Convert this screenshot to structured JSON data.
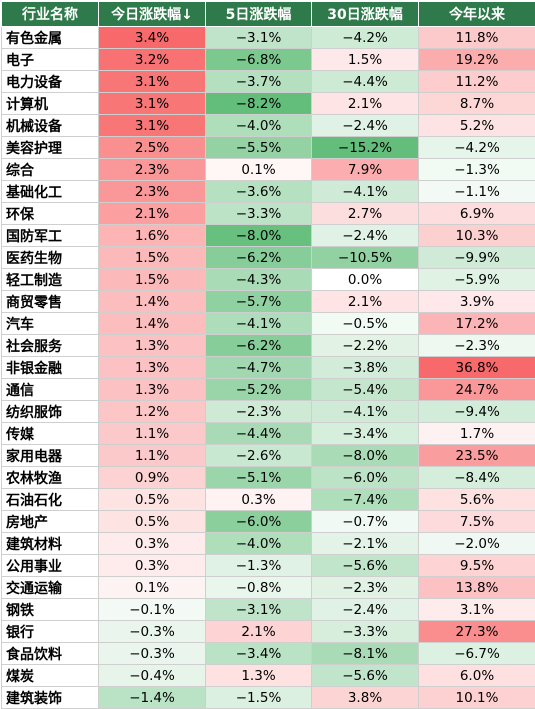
{
  "chart_data": {
    "type": "table",
    "columns": [
      "行业名称",
      "今日涨跌幅↓",
      "5日涨跌幅",
      "30日涨跌幅",
      "今年以来"
    ],
    "rows": [
      {
        "name": "有色金属",
        "values": [
          "3.4%",
          "−3.1%",
          "−4.2%",
          "11.8%"
        ]
      },
      {
        "name": "电子",
        "values": [
          "3.2%",
          "−6.8%",
          "1.5%",
          "19.2%"
        ]
      },
      {
        "name": "电力设备",
        "values": [
          "3.1%",
          "−3.7%",
          "−4.4%",
          "11.2%"
        ]
      },
      {
        "name": "计算机",
        "values": [
          "3.1%",
          "−8.2%",
          "2.1%",
          "8.7%"
        ]
      },
      {
        "name": "机械设备",
        "values": [
          "3.1%",
          "−4.0%",
          "−2.4%",
          "5.2%"
        ]
      },
      {
        "name": "美容护理",
        "values": [
          "2.5%",
          "−5.5%",
          "−15.2%",
          "−4.2%"
        ]
      },
      {
        "name": "综合",
        "values": [
          "2.3%",
          "0.1%",
          "7.9%",
          "−1.3%"
        ]
      },
      {
        "name": "基础化工",
        "values": [
          "2.3%",
          "−3.6%",
          "−4.1%",
          "−1.1%"
        ]
      },
      {
        "name": "环保",
        "values": [
          "2.1%",
          "−3.3%",
          "2.7%",
          "6.9%"
        ]
      },
      {
        "name": "国防军工",
        "values": [
          "1.6%",
          "−8.0%",
          "−2.4%",
          "10.3%"
        ]
      },
      {
        "name": "医药生物",
        "values": [
          "1.5%",
          "−6.2%",
          "−10.5%",
          "−9.9%"
        ]
      },
      {
        "name": "轻工制造",
        "values": [
          "1.5%",
          "−4.3%",
          "0.0%",
          "−5.9%"
        ]
      },
      {
        "name": "商贸零售",
        "values": [
          "1.4%",
          "−5.7%",
          "2.1%",
          "3.9%"
        ]
      },
      {
        "name": "汽车",
        "values": [
          "1.4%",
          "−4.1%",
          "−0.5%",
          "17.2%"
        ]
      },
      {
        "name": "社会服务",
        "values": [
          "1.3%",
          "−6.2%",
          "−2.2%",
          "−2.3%"
        ]
      },
      {
        "name": "非银金融",
        "values": [
          "1.3%",
          "−4.7%",
          "−3.8%",
          "36.8%"
        ]
      },
      {
        "name": "通信",
        "values": [
          "1.3%",
          "−5.2%",
          "−5.4%",
          "24.7%"
        ]
      },
      {
        "name": "纺织服饰",
        "values": [
          "1.2%",
          "−2.3%",
          "−4.1%",
          "−9.4%"
        ]
      },
      {
        "name": "传媒",
        "values": [
          "1.1%",
          "−4.4%",
          "−3.4%",
          "1.7%"
        ]
      },
      {
        "name": "家用电器",
        "values": [
          "1.1%",
          "−2.6%",
          "−8.0%",
          "23.5%"
        ]
      },
      {
        "name": "农林牧渔",
        "values": [
          "0.9%",
          "−5.1%",
          "−6.0%",
          "−8.4%"
        ]
      },
      {
        "name": "石油石化",
        "values": [
          "0.5%",
          "0.3%",
          "−7.4%",
          "5.6%"
        ]
      },
      {
        "name": "房地产",
        "values": [
          "0.5%",
          "−6.0%",
          "−0.7%",
          "7.5%"
        ]
      },
      {
        "name": "建筑材料",
        "values": [
          "0.3%",
          "−4.0%",
          "−2.1%",
          "−2.0%"
        ]
      },
      {
        "name": "公用事业",
        "values": [
          "0.3%",
          "−1.3%",
          "−5.6%",
          "9.5%"
        ]
      },
      {
        "name": "交通运输",
        "values": [
          "0.1%",
          "−0.8%",
          "−2.3%",
          "13.8%"
        ]
      },
      {
        "name": "钢铁",
        "values": [
          "−0.1%",
          "−3.1%",
          "−2.4%",
          "3.1%"
        ]
      },
      {
        "name": "银行",
        "values": [
          "−0.3%",
          "2.1%",
          "−3.3%",
          "27.3%"
        ]
      },
      {
        "name": "食品饮料",
        "values": [
          "−0.3%",
          "−3.4%",
          "−8.1%",
          "−6.7%"
        ]
      },
      {
        "name": "煤炭",
        "values": [
          "−0.4%",
          "1.3%",
          "−5.6%",
          "6.0%"
        ]
      },
      {
        "name": "建筑装饰",
        "values": [
          "−1.4%",
          "−1.5%",
          "3.8%",
          "10.1%"
        ]
      }
    ],
    "colors": {
      "header": "#2e7a4a",
      "positive": "#f8696b",
      "negative": "#63be7b",
      "neutral": "#ffffff"
    }
  }
}
